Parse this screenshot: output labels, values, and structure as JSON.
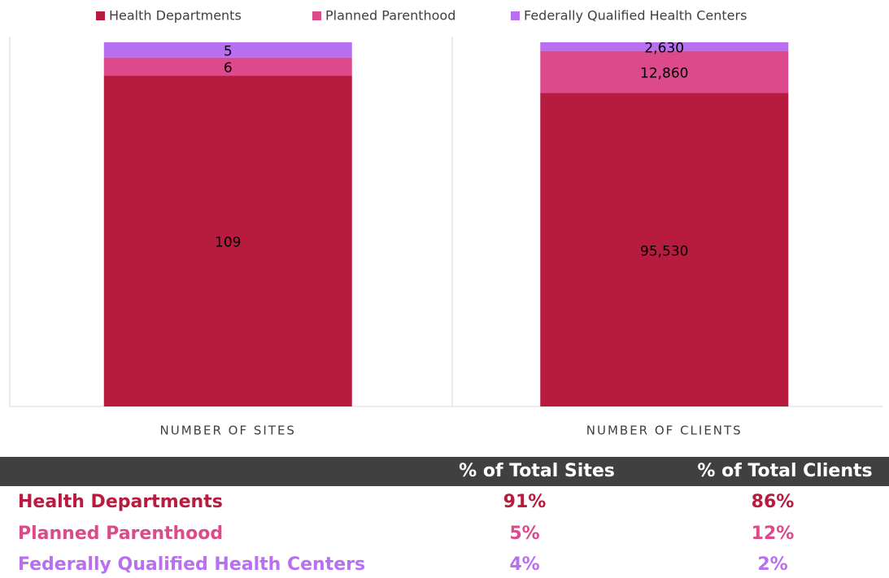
{
  "chart_data": {
    "type": "bar",
    "stacked": "percent",
    "categories": [
      "NUMBER OF SITES",
      "NUMBER OF CLIENTS"
    ],
    "series": [
      {
        "name": "Health Departments",
        "color": "#b71c3f",
        "values": [
          109,
          95530
        ],
        "value_labels": [
          "109",
          "95,530"
        ]
      },
      {
        "name": "Planned Parenthood",
        "color": "#dc4a8c",
        "values": [
          6,
          12860
        ],
        "value_labels": [
          "6",
          "12,860"
        ]
      },
      {
        "name": "Federally Qualified Health Centers",
        "color": "#b86ff0",
        "values": [
          5,
          2630
        ],
        "value_labels": [
          "5",
          "2,630"
        ]
      }
    ],
    "legend": "top"
  },
  "table": {
    "header": [
      "% of Total Sites",
      "% of Total Clients"
    ],
    "rows": [
      [
        "Health Departments",
        "91%",
        "86%"
      ],
      [
        "Planned Parenthood",
        "5%",
        "12%"
      ],
      [
        "Federally Qualified Health Centers",
        "4%",
        "2%"
      ]
    ]
  }
}
